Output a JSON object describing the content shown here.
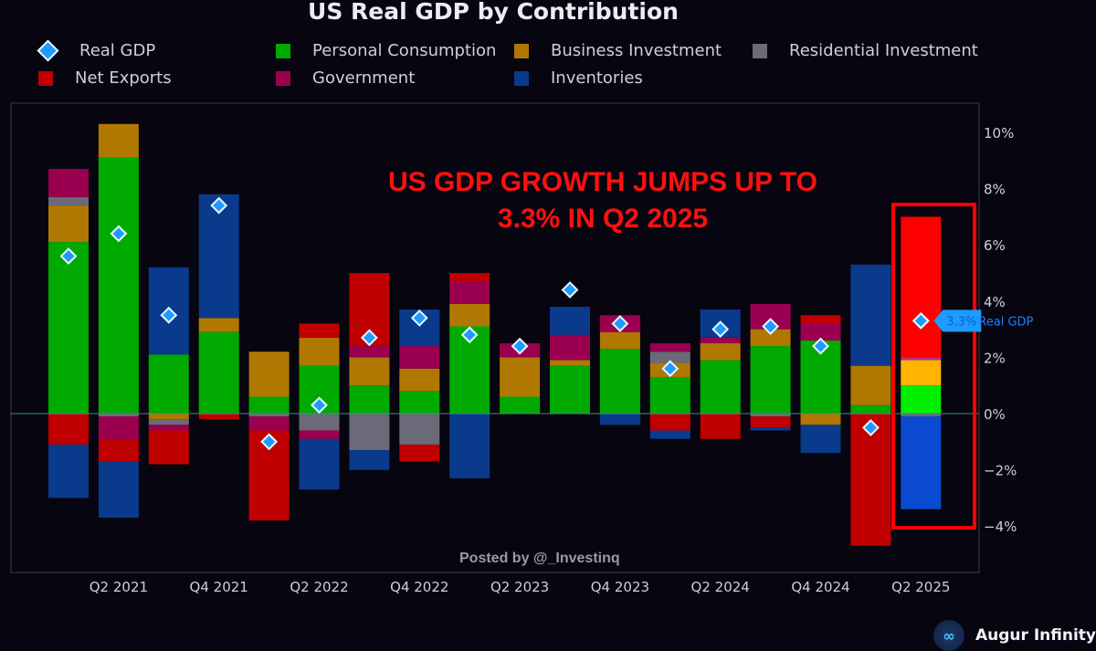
{
  "chart_data": {
    "type": "bar",
    "stacked": true,
    "title": "US Real GDP by Contribution",
    "annotation": "US GDP GROWTH JUMPS UP TO 3.3% IN Q2 2025",
    "annotation_lines": [
      "US GDP GROWTH JUMPS UP TO",
      "3.3% IN Q2 2025"
    ],
    "watermark": "Posted by @_Investinq",
    "brand": "Augur Infinity",
    "ylim": [
      -5,
      11
    ],
    "yticks": [
      10,
      8,
      6,
      4,
      2,
      0,
      -2,
      -4
    ],
    "ytick_labels": [
      "10%",
      "8%",
      "6%",
      "4%",
      "2%",
      "0%",
      "−2%",
      "−4%"
    ],
    "xtick_labels": [
      "Q2 2021",
      "Q4 2021",
      "Q2 2022",
      "Q4 2022",
      "Q2 2023",
      "Q4 2023",
      "Q2 2024",
      "Q4 2024",
      "Q2 2025"
    ],
    "categories": [
      "Q1 2021",
      "Q2 2021",
      "Q3 2021",
      "Q4 2021",
      "Q1 2022",
      "Q2 2022",
      "Q3 2022",
      "Q4 2022",
      "Q1 2023",
      "Q2 2023",
      "Q3 2023",
      "Q4 2023",
      "Q1 2024",
      "Q2 2024",
      "Q3 2024",
      "Q4 2024",
      "Q1 2025",
      "Q2 2025"
    ],
    "legend_placement": "top",
    "series": [
      {
        "name": "Personal Consumption",
        "color": "#00aa00",
        "values": [
          6.1,
          9.1,
          2.1,
          2.9,
          0.6,
          1.7,
          1.0,
          0.8,
          3.1,
          0.6,
          1.7,
          2.3,
          1.3,
          1.9,
          2.4,
          2.6,
          0.3,
          1.0
        ]
      },
      {
        "name": "Business Investment",
        "color": "#b07800",
        "values": [
          1.3,
          1.2,
          -0.2,
          0.5,
          1.6,
          1.0,
          1.0,
          0.8,
          0.8,
          1.4,
          0.2,
          0.6,
          0.5,
          0.6,
          0.6,
          -0.4,
          1.4,
          0.9
        ]
      },
      {
        "name": "Residential Investment",
        "color": "#6a6a78",
        "values": [
          0.3,
          -0.1,
          -0.2,
          0.0,
          -0.1,
          -0.6,
          -1.3,
          -1.1,
          0.0,
          0.0,
          0.0,
          0.0,
          0.4,
          0.0,
          -0.1,
          0.0,
          0.0,
          -0.1
        ]
      },
      {
        "name": "Government",
        "color": "#9b0050",
        "values": [
          1.0,
          -0.8,
          -0.2,
          0.0,
          -0.5,
          -0.3,
          0.4,
          0.8,
          0.8,
          0.5,
          0.9,
          0.6,
          0.3,
          0.2,
          0.9,
          0.6,
          0.0,
          0.1
        ]
      },
      {
        "name": "Net Exports",
        "color": "#c00000",
        "values": [
          -1.1,
          -0.8,
          -1.2,
          -0.2,
          -3.2,
          0.5,
          2.6,
          -0.6,
          0.3,
          0.0,
          0.0,
          0.0,
          -0.6,
          -0.9,
          -0.4,
          0.3,
          -4.7,
          5.0
        ]
      },
      {
        "name": "Inventories",
        "color": "#0a3a8c",
        "values": [
          -1.9,
          -2.0,
          3.1,
          4.4,
          0.0,
          -1.8,
          -0.7,
          1.3,
          -2.3,
          0.0,
          1.0,
          -0.4,
          -0.3,
          1.0,
          -0.1,
          -1.0,
          3.6,
          -3.3
        ]
      }
    ],
    "highlight_series_colors": {
      "Net Exports": "#ff0000",
      "Business Investment": "#ffb400",
      "Personal Consumption": "#00ee00",
      "Inventories": "#0a4ad0",
      "Government": "#b0308a"
    },
    "line_series": {
      "name": "Real GDP",
      "marker": "diamond",
      "color": "#1e9bff",
      "values": [
        5.6,
        6.4,
        3.5,
        7.4,
        -1.0,
        0.3,
        2.7,
        3.4,
        2.8,
        2.4,
        4.4,
        3.2,
        1.6,
        3.0,
        3.1,
        2.4,
        -0.5,
        3.3
      ]
    },
    "callout": {
      "category": "Q2 2025",
      "value_label": "3.3%",
      "series_label": "Real GDP"
    },
    "highlight_category": "Q2 2025"
  },
  "legend": [
    {
      "label": "Real GDP",
      "type": "diamond",
      "color": "#1e9bff"
    },
    {
      "label": "Personal Consumption",
      "type": "square",
      "color": "#00aa00"
    },
    {
      "label": "Business Investment",
      "type": "square",
      "color": "#b07800"
    },
    {
      "label": "Residential Investment",
      "type": "square",
      "color": "#6a6a78"
    },
    {
      "label": "Net Exports",
      "type": "square",
      "color": "#c00000"
    },
    {
      "label": "Government",
      "type": "square",
      "color": "#9b0050"
    },
    {
      "label": "Inventories",
      "type": "square",
      "color": "#0a3a8c"
    }
  ]
}
